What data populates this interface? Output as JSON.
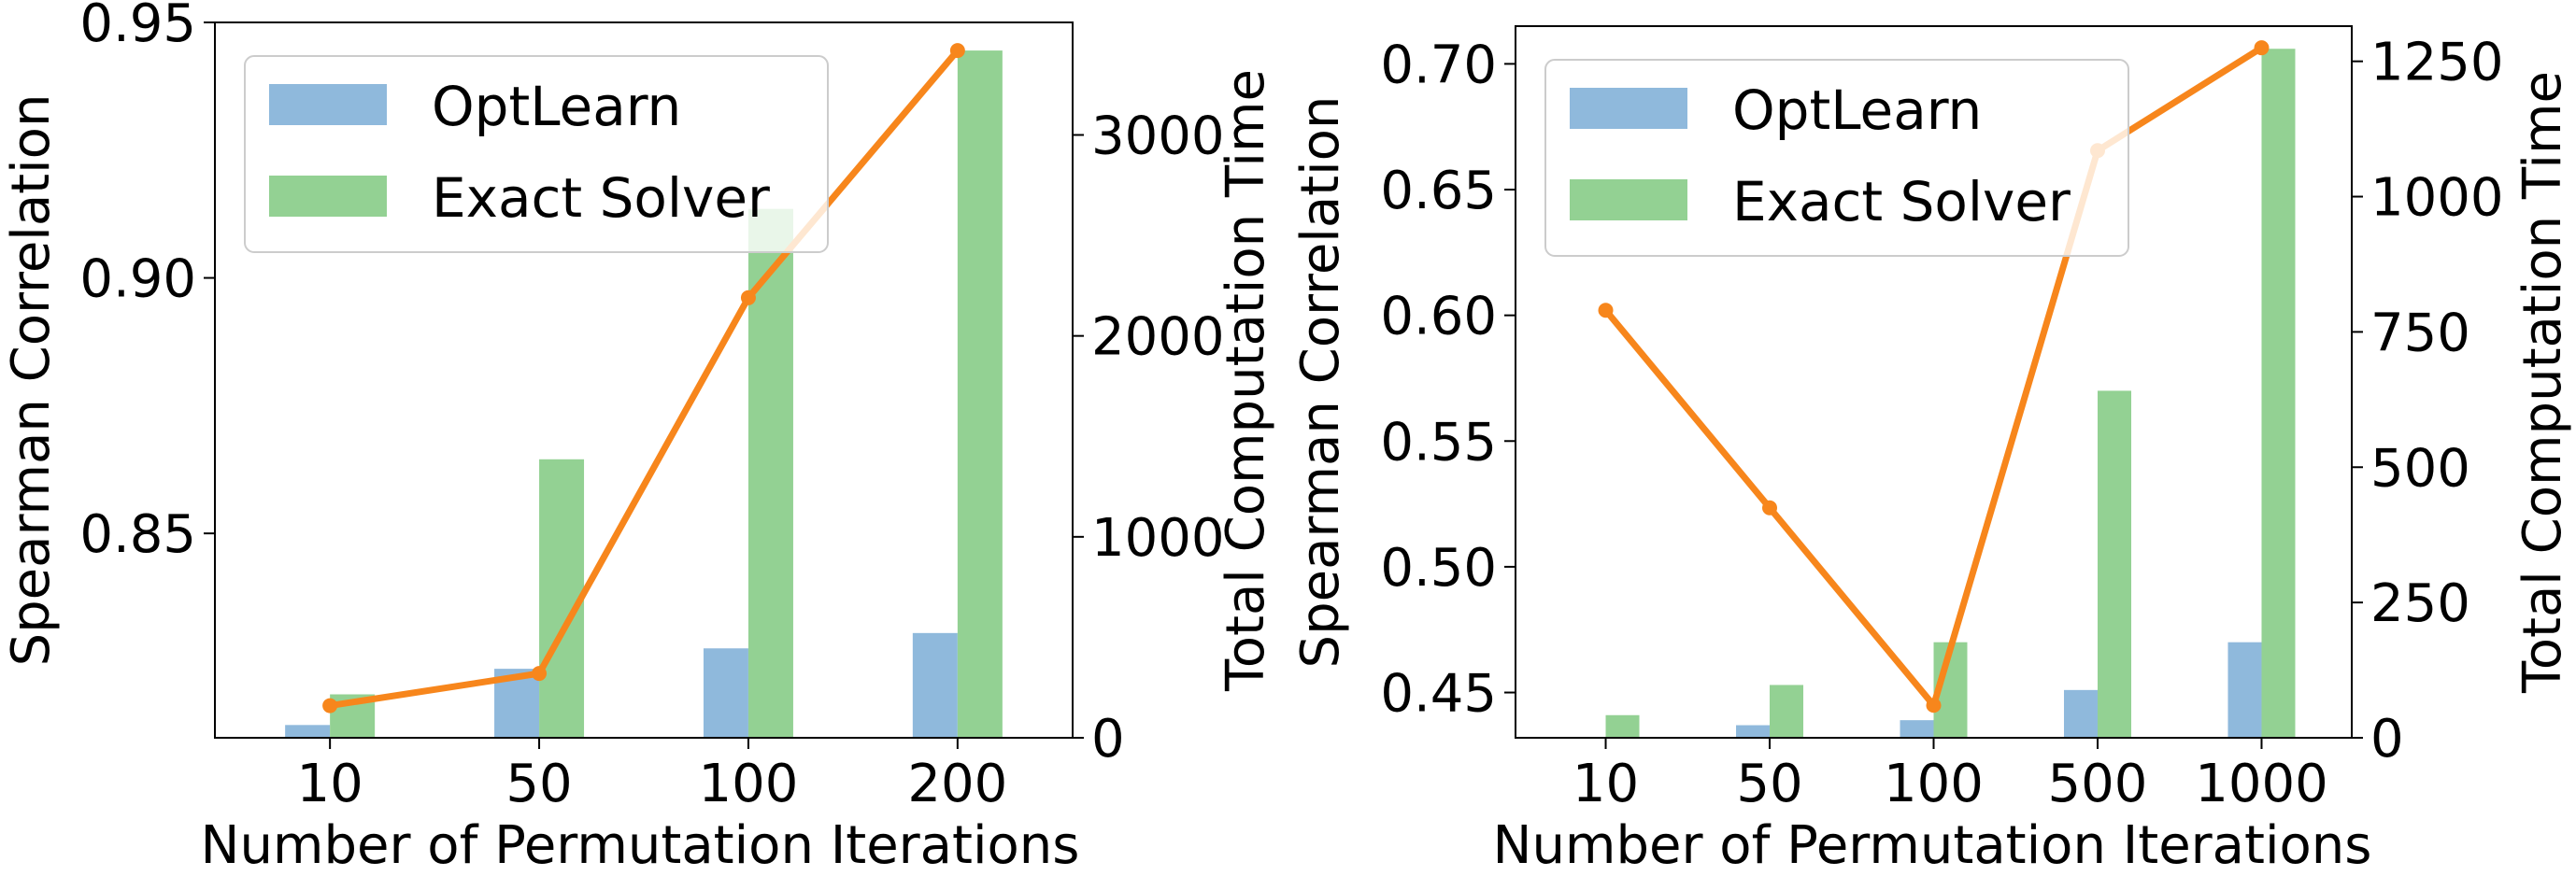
{
  "colors": {
    "optlearn": "#8fb9dc",
    "exact": "#93d193",
    "line": "#f7861c",
    "axis": "#000000"
  },
  "chart_data": [
    {
      "type": "bar+line",
      "categories": [
        "10",
        "50",
        "100",
        "200"
      ],
      "series": [
        {
          "name": "OptLearn",
          "axis": "left",
          "values": [
            0.8125,
            0.8235,
            0.8275,
            0.8305
          ]
        },
        {
          "name": "Exact Solver",
          "axis": "left",
          "values": [
            0.8185,
            0.8645,
            0.9135,
            0.9445
          ]
        },
        {
          "name": "Total Computation Time",
          "axis": "right",
          "type": "line",
          "values": [
            160,
            320,
            2190,
            3420
          ]
        }
      ],
      "xlabel": "Number of Permutation Iterations",
      "ylabel": "Spearman Correlation",
      "y2label": "Total Computation Time",
      "ylim": [
        0.81,
        0.95
      ],
      "y2lim": [
        0,
        3560
      ],
      "yticks": [
        0.85,
        0.9,
        0.95
      ],
      "ytick_labels": [
        "0.85",
        "0.90",
        "0.95"
      ],
      "y2ticks": [
        0,
        1000,
        2000,
        3000
      ],
      "y2tick_labels": [
        "0",
        "1000",
        "2000",
        "3000"
      ],
      "legend": {
        "position": "top-left",
        "entries": [
          "OptLearn",
          "Exact Solver"
        ]
      }
    },
    {
      "type": "bar+line",
      "categories": [
        "10",
        "50",
        "100",
        "500",
        "1000"
      ],
      "series": [
        {
          "name": "OptLearn",
          "axis": "left",
          "values": [
            0.432,
            0.437,
            0.439,
            0.451,
            0.47
          ]
        },
        {
          "name": "Exact Solver",
          "axis": "left",
          "values": [
            0.441,
            0.453,
            0.47,
            0.57,
            0.706
          ]
        },
        {
          "name": "Total Computation Time",
          "axis": "right",
          "type": "line",
          "values": [
            790,
            425,
            60,
            1085,
            1275
          ]
        }
      ],
      "xlabel": "Number of Permutation Iterations",
      "ylabel": "Spearman Correlation",
      "y2label": "Total Computation Time",
      "ylim": [
        0.432,
        0.715
      ],
      "y2lim": [
        0,
        1315
      ],
      "yticks": [
        0.45,
        0.5,
        0.55,
        0.6,
        0.65,
        0.7
      ],
      "ytick_labels": [
        "0.45",
        "0.50",
        "0.55",
        "0.60",
        "0.65",
        "0.70"
      ],
      "y2ticks": [
        0,
        250,
        500,
        750,
        1000,
        1250
      ],
      "y2tick_labels": [
        "0",
        "250",
        "500",
        "750",
        "1000",
        "1250"
      ],
      "legend": {
        "position": "top-left",
        "entries": [
          "OptLearn",
          "Exact Solver"
        ]
      }
    }
  ]
}
